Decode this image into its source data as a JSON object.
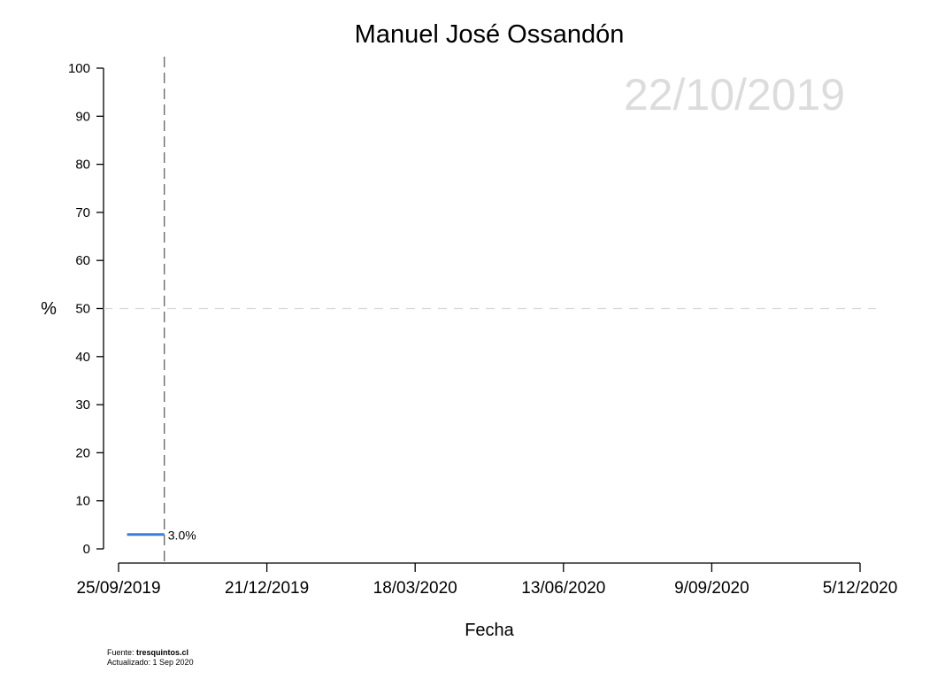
{
  "chart_data": {
    "type": "line",
    "title": "Manuel José Ossandón",
    "watermark_date": "22/10/2019",
    "xlabel": "Fecha",
    "ylabel": "%",
    "ylim": [
      0,
      100
    ],
    "y_ticks": [
      0,
      10,
      20,
      30,
      40,
      50,
      60,
      70,
      80,
      90,
      100
    ],
    "x_ticks": [
      "25/09/2019",
      "21/12/2019",
      "18/03/2020",
      "13/06/2020",
      "9/09/2020",
      "5/12/2020"
    ],
    "xlim": [
      "2019-09-25",
      "2020-12-05"
    ],
    "reference_lines": {
      "horizontal_y": 50,
      "vertical_date": "2019-10-22"
    },
    "series": [
      {
        "color": "#3b7ddd",
        "points": [
          {
            "date": "2019-09-30",
            "value": 3.0
          },
          {
            "date": "2019-10-22",
            "value": 3.0
          }
        ],
        "end_label": "3.0%"
      }
    ],
    "grid": false
  },
  "footer": {
    "source_prefix": "Fuente: ",
    "source_name": "tresquintos.cl",
    "updated": "Actualizado: 1 Sep 2020"
  }
}
